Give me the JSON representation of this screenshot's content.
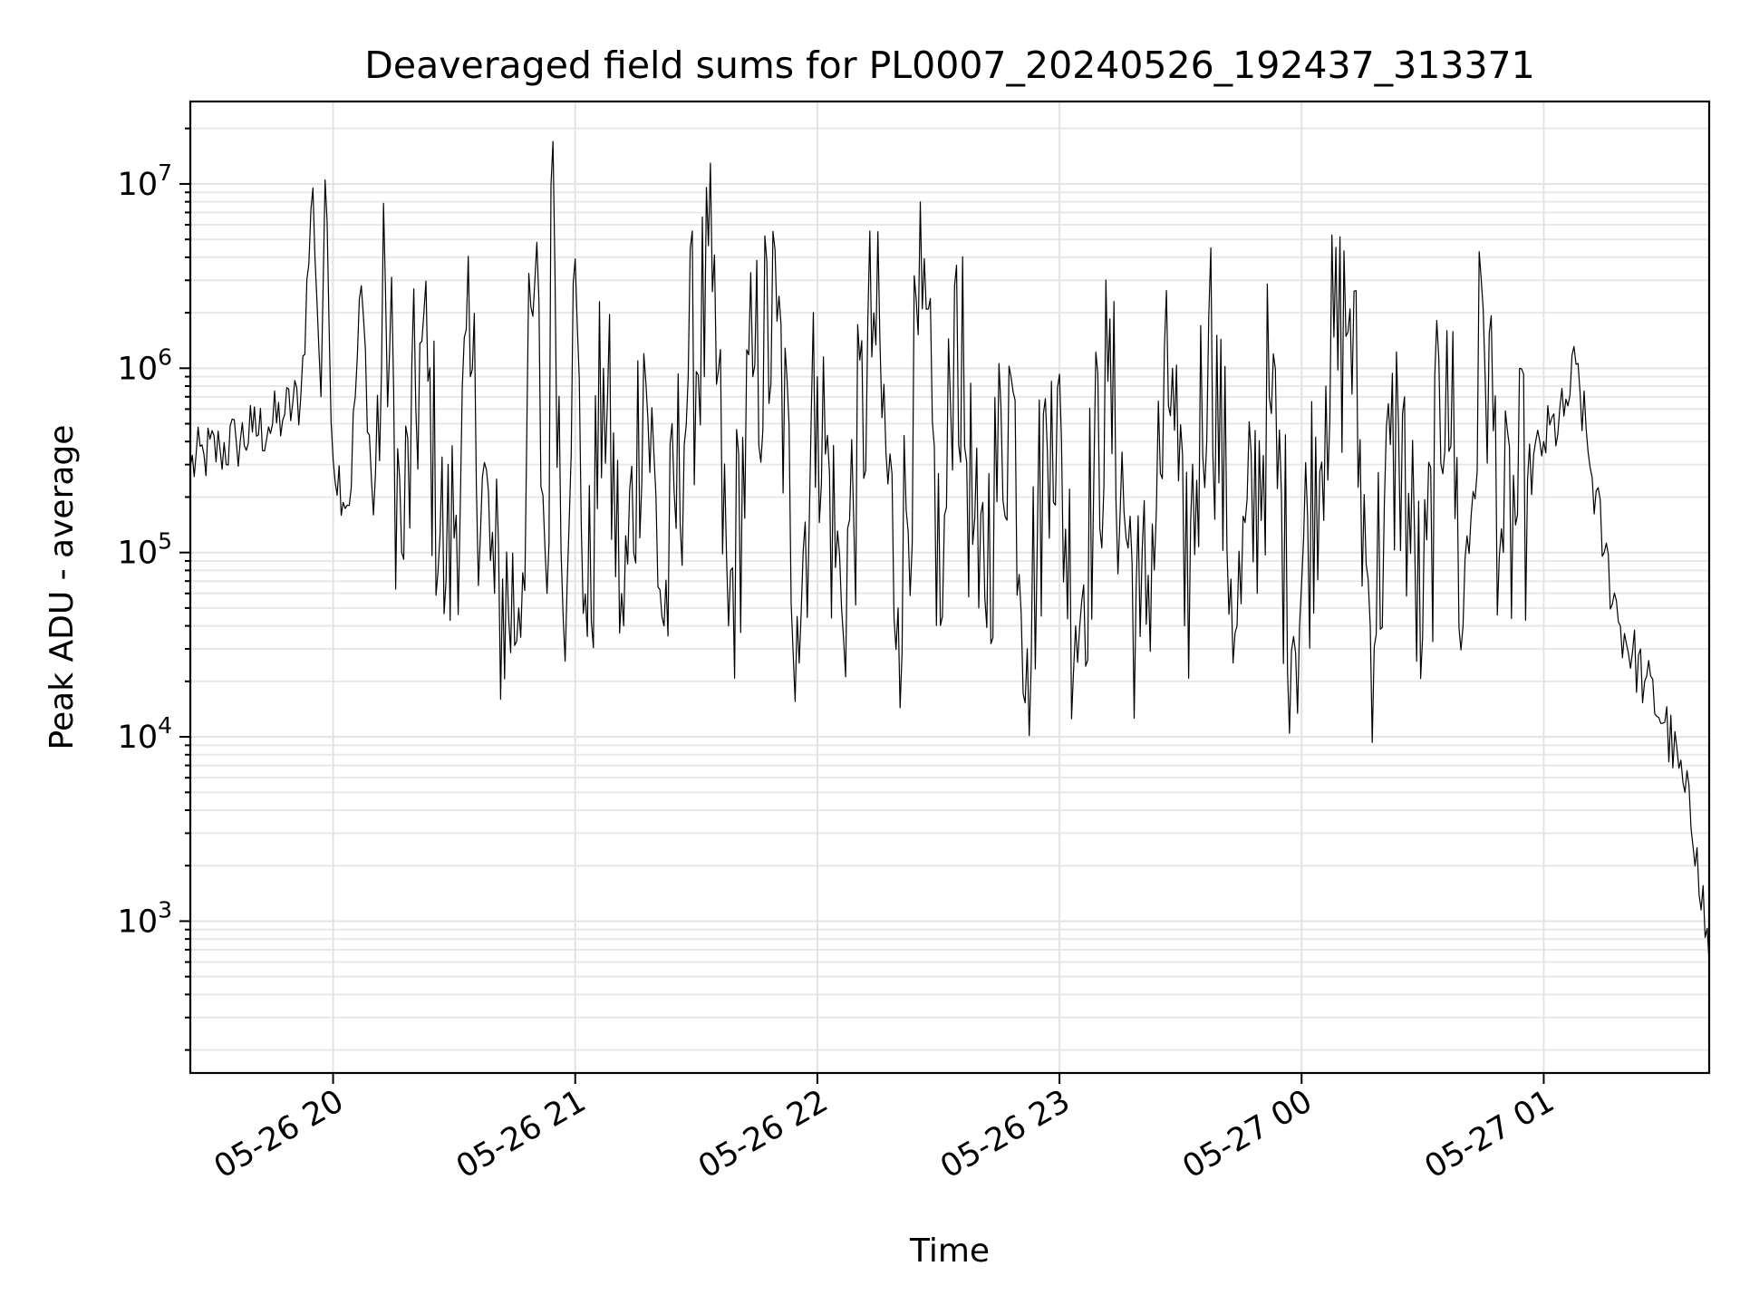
{
  "chart_data": {
    "type": "line",
    "title": "Deaveraged field sums for PL0007_20240526_192437_313371",
    "xlabel": "Time",
    "ylabel": "Peak ADU - average",
    "y_scale": "log",
    "ylim": [
      150,
      28000000
    ],
    "xlim": [
      "2024-05-26T19:24:37",
      "2024-05-27T01:41:00"
    ],
    "grid": "both",
    "x_ticks": [
      {
        "t": "2024-05-26T20:00:00",
        "label": "05-26 20"
      },
      {
        "t": "2024-05-26T21:00:00",
        "label": "05-26 21"
      },
      {
        "t": "2024-05-26T22:00:00",
        "label": "05-26 22"
      },
      {
        "t": "2024-05-26T23:00:00",
        "label": "05-26 23"
      },
      {
        "t": "2024-05-27T00:00:00",
        "label": "05-27 00"
      },
      {
        "t": "2024-05-27T01:00:00",
        "label": "05-27 01"
      }
    ],
    "y_ticks": [
      {
        "value": 1000,
        "base": "10",
        "exp": "3"
      },
      {
        "value": 10000,
        "base": "10",
        "exp": "4"
      },
      {
        "value": 100000,
        "base": "10",
        "exp": "5"
      },
      {
        "value": 1000000,
        "base": "10",
        "exp": "6"
      },
      {
        "value": 10000000,
        "base": "10",
        "exp": "7"
      }
    ],
    "series": [
      {
        "color": "#000000",
        "points": [
          [
            "2024-05-26T19:24:37",
            290000
          ],
          [
            "2024-05-26T19:28:00",
            340000
          ],
          [
            "2024-05-26T19:32:00",
            360000
          ],
          [
            "2024-05-26T19:36:00",
            400000
          ],
          [
            "2024-05-26T19:40:00",
            450000
          ],
          [
            "2024-05-26T19:44:00",
            480000
          ],
          [
            "2024-05-26T19:48:00",
            560000
          ],
          [
            "2024-05-26T19:52:00",
            700000
          ],
          [
            "2024-05-26T19:55:00",
            9500000
          ],
          [
            "2024-05-26T19:57:00",
            700000
          ],
          [
            "2024-05-26T19:58:00",
            10500000
          ],
          [
            "2024-05-26T20:00:00",
            320000
          ],
          [
            "2024-05-26T20:04:00",
            180000
          ],
          [
            "2024-05-26T20:07:00",
            2800000
          ],
          [
            "2024-05-26T20:10:00",
            160000
          ],
          [
            "2024-05-26T20:13:00",
            2600000
          ],
          [
            "2024-05-26T20:17:00",
            100000
          ],
          [
            "2024-05-26T20:22:00",
            1400000
          ],
          [
            "2024-05-26T20:28:00",
            70000
          ],
          [
            "2024-05-26T20:34:00",
            900000
          ],
          [
            "2024-05-26T20:40:00",
            60000
          ],
          [
            "2024-05-26T20:46:00",
            50000
          ],
          [
            "2024-05-26T20:50:00",
            3000000
          ],
          [
            "2024-05-26T20:53:00",
            60000
          ],
          [
            "2024-05-26T20:54:30",
            17000000
          ],
          [
            "2024-05-26T20:57:00",
            45000
          ],
          [
            "2024-05-26T20:59:30",
            2900000
          ],
          [
            "2024-05-26T21:03:00",
            35000
          ],
          [
            "2024-05-26T21:07:00",
            1000000
          ],
          [
            "2024-05-26T21:12:00",
            40000
          ],
          [
            "2024-05-26T21:17:00",
            1200000
          ],
          [
            "2024-05-26T21:22:00",
            40000
          ],
          [
            "2024-05-26T21:28:00",
            900000
          ],
          [
            "2024-05-26T21:34:00",
            2600000
          ],
          [
            "2024-05-26T21:38:00",
            40000
          ],
          [
            "2024-05-26T21:44:00",
            900000
          ],
          [
            "2024-05-26T21:50:00",
            1800000
          ],
          [
            "2024-05-26T21:55:00",
            45000
          ],
          [
            "2024-05-26T22:00:00",
            900000
          ],
          [
            "2024-05-26T22:06:00",
            50000
          ],
          [
            "2024-05-26T22:14:00",
            2000000
          ],
          [
            "2024-05-26T22:20:00",
            50000
          ],
          [
            "2024-05-26T22:26:00",
            2100000
          ],
          [
            "2024-05-26T22:31:00",
            45000
          ],
          [
            "2024-05-26T22:34:00",
            2800000
          ],
          [
            "2024-05-26T22:40:00",
            50000
          ],
          [
            "2024-05-26T22:48:00",
            900000
          ],
          [
            "2024-05-26T22:52:00",
            30000
          ],
          [
            "2024-05-26T22:58:00",
            850000
          ],
          [
            "2024-05-26T23:04:00",
            40000
          ],
          [
            "2024-05-26T23:12:00",
            850000
          ],
          [
            "2024-05-26T23:20:00",
            35000
          ],
          [
            "2024-05-26T23:28:00",
            1000000
          ],
          [
            "2024-05-26T23:31:00",
            40000
          ],
          [
            "2024-05-26T23:37:00",
            1900000
          ],
          [
            "2024-05-26T23:44:00",
            40000
          ],
          [
            "2024-05-26T23:52:00",
            700000
          ],
          [
            "2024-05-26T23:58:00",
            35000
          ],
          [
            "2024-05-27T00:06:00",
            800000
          ],
          [
            "2024-05-27T00:12:00",
            2100000
          ],
          [
            "2024-05-27T00:17:00",
            40000
          ],
          [
            "2024-05-27T00:24:00",
            500000
          ],
          [
            "2024-05-27T00:30:00",
            35000
          ],
          [
            "2024-05-27T00:36:00",
            1600000
          ],
          [
            "2024-05-27T00:40:00",
            40000
          ],
          [
            "2024-05-27T00:45:00",
            2100000
          ],
          [
            "2024-05-27T00:50:00",
            100000
          ],
          [
            "2024-05-27T00:56:00",
            250000
          ],
          [
            "2024-05-27T01:00:00",
            400000
          ],
          [
            "2024-05-27T01:05:00",
            550000
          ],
          [
            "2024-05-27T01:08:00",
            1050000
          ],
          [
            "2024-05-27T01:11:00",
            350000
          ],
          [
            "2024-05-27T01:15:00",
            100000
          ],
          [
            "2024-05-27T01:19:00",
            40000
          ],
          [
            "2024-05-27T01:25:00",
            20000
          ],
          [
            "2024-05-27T01:30:00",
            12000
          ],
          [
            "2024-05-27T01:35:00",
            5000
          ],
          [
            "2024-05-27T01:38:00",
            2500
          ],
          [
            "2024-05-27T01:41:00",
            600
          ]
        ]
      }
    ]
  }
}
